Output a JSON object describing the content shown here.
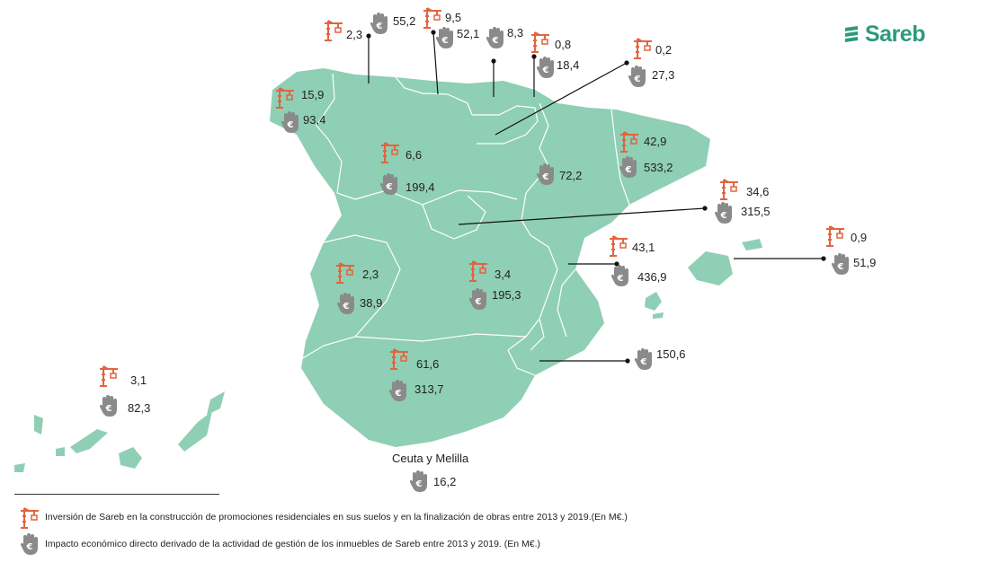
{
  "brand": {
    "name": "Sareb",
    "color": "#2c9a7c"
  },
  "colors": {
    "land": "#8fcfb5",
    "border": "#ffffff",
    "crane": "#e2643f",
    "hand": "#8a8a8a"
  },
  "icons": {
    "investment": "crane-icon",
    "impact": "hand-euro-icon"
  },
  "regions": [
    {
      "id": "galicia",
      "investment": "15,9",
      "impact": "93,4"
    },
    {
      "id": "asturias",
      "investment": "2,3",
      "impact": "55,2"
    },
    {
      "id": "cantabria",
      "investment": "9,5",
      "impact": "52,1"
    },
    {
      "id": "pais-vasco",
      "investment": "",
      "impact": "8,3"
    },
    {
      "id": "navarra",
      "investment": "0,8",
      "impact": "18,4"
    },
    {
      "id": "la-rioja",
      "investment": "0,2",
      "impact": "27,3"
    },
    {
      "id": "castilla-y-leon",
      "investment": "6,6",
      "impact": "199,4"
    },
    {
      "id": "aragon",
      "investment": "",
      "impact": "72,2"
    },
    {
      "id": "cataluna",
      "investment": "42,9",
      "impact": "533,2"
    },
    {
      "id": "madrid",
      "investment": "34,6",
      "impact": "315,5"
    },
    {
      "id": "baleares",
      "investment": "0,9",
      "impact": "51,9"
    },
    {
      "id": "valencia",
      "investment": "43,1",
      "impact": "436,9"
    },
    {
      "id": "extremadura",
      "investment": "2,3",
      "impact": "38,9"
    },
    {
      "id": "castilla-la-mancha",
      "investment": "3,4",
      "impact": "195,3"
    },
    {
      "id": "murcia",
      "investment": "",
      "impact": "150,6"
    },
    {
      "id": "andalucia",
      "investment": "61,6",
      "impact": "313,7"
    },
    {
      "id": "canarias",
      "investment": "3,1",
      "impact": "82,3"
    },
    {
      "id": "ceuta-melilla",
      "name": "Ceuta y Melilla",
      "investment": "",
      "impact": "16,2"
    }
  ],
  "legend": {
    "investment_text": "Inversión de Sareb en la construcción de promociones residenciales en sus suelos y en la finalización de obras entre 2013 y 2019.(En M€.)",
    "impact_text": "Impacto económico directo derivado de la actividad de gestión de los inmuebles de Sareb entre 2013 y 2019. (En M€.)"
  }
}
